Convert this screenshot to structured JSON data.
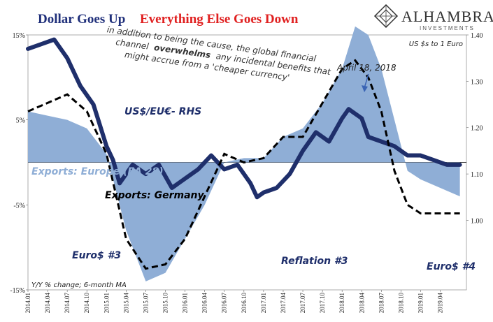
{
  "title": {
    "part1": "Dollar Goes Up",
    "part2": "Everything Else Goes Down"
  },
  "logo": {
    "name": "ALHAMBRA",
    "sub": "INVESTMENTS"
  },
  "rhs_unit_label": "US $s to 1 Euro",
  "footnote": "Y/Y % change; 6-month MA",
  "annotations": {
    "quote_line1": "in addition to being the cause, the global financial",
    "quote_line2_pre": "channel",
    "quote_line2_bold": "overwhelms",
    "quote_line2_post": "any incidental benefits that",
    "quote_line3": "might accrue from a 'cheaper currency'",
    "april_label": "April 18, 2018",
    "usd_label": "US$/EU€- RHS",
    "europe_label": "Exports: Europe (EA 28)",
    "germany_label": "Exports: Germany",
    "euro3": "Euro$ #3",
    "reflation3": "Reflation #3",
    "euro4": "Euro$ #4"
  },
  "colors": {
    "usd_line": "#1f2f6b",
    "europe_area": "#8faed6",
    "germany_line": "#000000",
    "title_blue": "#1f2f7a",
    "title_red": "#e02020"
  },
  "chart_data": {
    "type": "line",
    "x_ticks": [
      "2014.01",
      "2014.04",
      "2014.07",
      "2014.10",
      "2015.01",
      "2015.04",
      "2015.07",
      "2015.10",
      "2016.01",
      "2016.04",
      "2016.07",
      "2016.10",
      "2017.01",
      "2017.04",
      "2017.07",
      "2017.10",
      "2018.01",
      "2018.04",
      "2018.07",
      "2018.10",
      "2019.01",
      "2019.04"
    ],
    "left_axis": {
      "ticks": [
        "15%",
        "5%",
        "-5%",
        "-15%"
      ],
      "values": [
        15,
        5,
        -5,
        -15
      ],
      "ylim": [
        -15,
        15
      ]
    },
    "right_axis": {
      "ticks": [
        "1.40",
        "1.30",
        "1.20",
        "1.10",
        "1.00"
      ],
      "values": [
        1.4,
        1.3,
        1.2,
        1.1,
        1.0
      ],
      "ylim": [
        0.85,
        1.4
      ]
    },
    "series": [
      {
        "name": "US$/EU€- RHS",
        "axis": "right",
        "x": [
          "2014.01",
          "2014.03",
          "2014.05",
          "2014.07",
          "2014.09",
          "2014.11",
          "2015.01",
          "2015.02",
          "2015.03",
          "2015.05",
          "2015.07",
          "2015.09",
          "2015.11",
          "2016.01",
          "2016.03",
          "2016.05",
          "2016.07",
          "2016.09",
          "2016.11",
          "2016.12",
          "2017.01",
          "2017.03",
          "2017.05",
          "2017.07",
          "2017.09",
          "2017.11",
          "2018.01",
          "2018.02",
          "2018.03",
          "2018.04",
          "2018.05",
          "2018.07",
          "2018.09",
          "2018.11",
          "2019.01",
          "2019.03",
          "2019.05",
          "2019.07"
        ],
        "values": [
          1.37,
          1.38,
          1.39,
          1.35,
          1.29,
          1.25,
          1.16,
          1.13,
          1.08,
          1.12,
          1.1,
          1.12,
          1.07,
          1.09,
          1.11,
          1.14,
          1.11,
          1.12,
          1.08,
          1.05,
          1.06,
          1.07,
          1.1,
          1.15,
          1.19,
          1.17,
          1.22,
          1.24,
          1.23,
          1.22,
          1.18,
          1.17,
          1.16,
          1.14,
          1.14,
          1.13,
          1.12,
          1.12
        ]
      },
      {
        "name": "Exports: Europe (EA 28)",
        "axis": "left",
        "x": [
          "2014.01",
          "2014.04",
          "2014.07",
          "2014.10",
          "2015.01",
          "2015.04",
          "2015.07",
          "2015.10",
          "2016.01",
          "2016.04",
          "2016.07",
          "2016.10",
          "2017.01",
          "2017.04",
          "2017.07",
          "2017.10",
          "2018.01",
          "2018.03",
          "2018.05",
          "2018.07",
          "2018.09",
          "2018.11",
          "2019.01",
          "2019.04",
          "2019.07"
        ],
        "values": [
          6,
          5.5,
          5,
          4,
          1,
          -8,
          -14,
          -13,
          -9,
          -5,
          0,
          0.5,
          0.5,
          3,
          4,
          7,
          11,
          16,
          15,
          11,
          5,
          -1,
          -2,
          -3,
          -4
        ]
      },
      {
        "name": "Exports: Germany",
        "axis": "left",
        "x": [
          "2014.01",
          "2014.04",
          "2014.07",
          "2014.10",
          "2015.01",
          "2015.04",
          "2015.07",
          "2015.10",
          "2016.01",
          "2016.04",
          "2016.07",
          "2016.10",
          "2017.01",
          "2017.04",
          "2017.07",
          "2017.10",
          "2018.01",
          "2018.03",
          "2018.05",
          "2018.07",
          "2018.09",
          "2018.11",
          "2019.01",
          "2019.04",
          "2019.07"
        ],
        "values": [
          6,
          7,
          8,
          6,
          1,
          -9,
          -12.5,
          -12,
          -9,
          -4,
          1,
          0,
          0.5,
          3,
          3,
          7,
          11,
          12,
          10,
          6,
          -1,
          -5,
          -6,
          -6,
          -6
        ]
      }
    ]
  }
}
